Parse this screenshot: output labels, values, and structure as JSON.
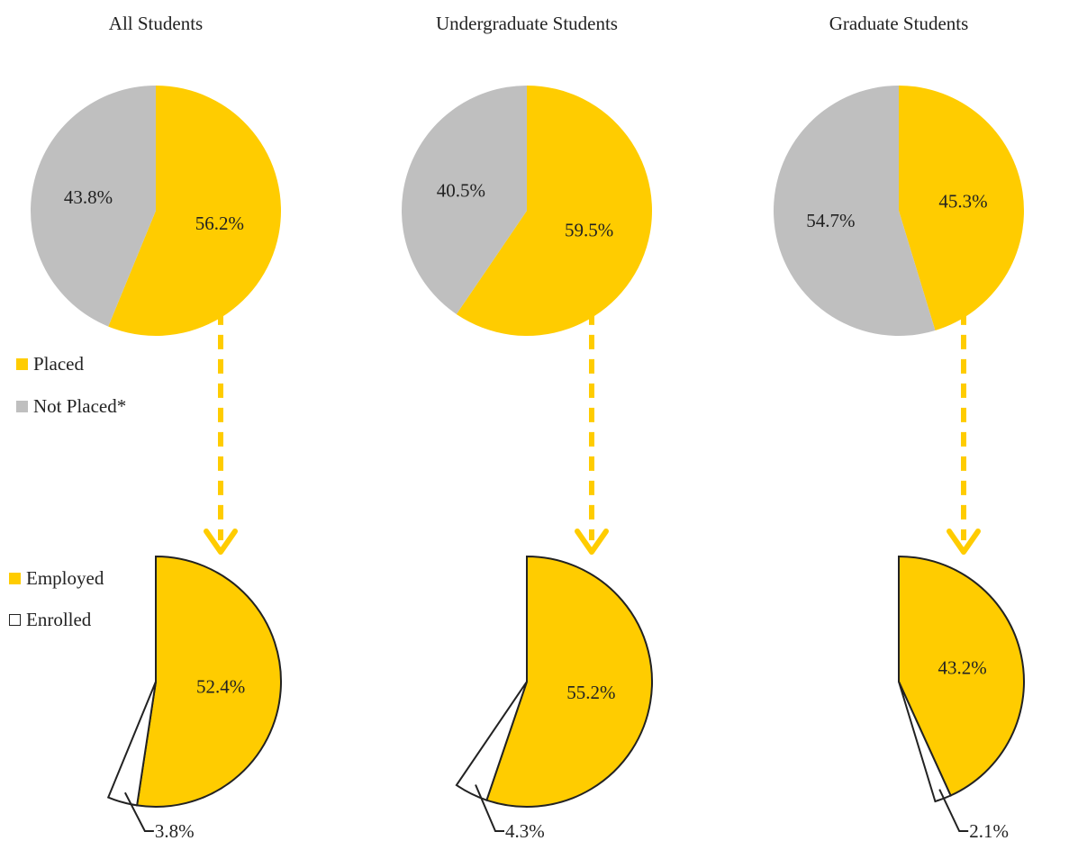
{
  "colors": {
    "placed": "#FFCC00",
    "not_placed": "#BFBFBF",
    "employed": "#FFCC00",
    "enrolled": "#FFFFFF"
  },
  "legend_top": [
    {
      "label": "Placed",
      "color": "#FFCC00"
    },
    {
      "label": "Not Placed*",
      "color": "#BFBFBF"
    }
  ],
  "legend_bottom": [
    {
      "label": "Employed",
      "color": "#FFCC00"
    },
    {
      "label": "Enrolled",
      "color": "#FFFFFF"
    }
  ],
  "chart_data": [
    {
      "type": "pie",
      "title": "All Students",
      "group": "All Students",
      "level": "placement",
      "slices": [
        {
          "name": "Placed",
          "value": 56.2,
          "label": "56.2%"
        },
        {
          "name": "Not Placed*",
          "value": 43.8,
          "label": "43.8%"
        }
      ]
    },
    {
      "type": "pie",
      "title": "Undergraduate Students",
      "group": "Undergraduate Students",
      "level": "placement",
      "slices": [
        {
          "name": "Placed",
          "value": 59.5,
          "label": "59.5%"
        },
        {
          "name": "Not Placed*",
          "value": 40.5,
          "label": "40.5%"
        }
      ]
    },
    {
      "type": "pie",
      "title": "Graduate Students",
      "group": "Graduate Students",
      "level": "placement",
      "slices": [
        {
          "name": "Placed",
          "value": 45.3,
          "label": "45.3%"
        },
        {
          "name": "Not Placed*",
          "value": 54.7,
          "label": "54.7%"
        }
      ]
    },
    {
      "type": "pie",
      "title": "",
      "group": "All Students",
      "level": "breakdown",
      "slices": [
        {
          "name": "Employed",
          "value": 52.4,
          "label": "52.4%"
        },
        {
          "name": "Enrolled",
          "value": 3.8,
          "label": "3.8%"
        }
      ]
    },
    {
      "type": "pie",
      "title": "",
      "group": "Undergraduate Students",
      "level": "breakdown",
      "slices": [
        {
          "name": "Employed",
          "value": 55.2,
          "label": "55.2%"
        },
        {
          "name": "Enrolled",
          "value": 4.3,
          "label": "4.3%"
        }
      ]
    },
    {
      "type": "pie",
      "title": "",
      "group": "Graduate Students",
      "level": "breakdown",
      "slices": [
        {
          "name": "Employed",
          "value": 43.2,
          "label": "43.2%"
        },
        {
          "name": "Enrolled",
          "value": 2.1,
          "label": "2.1%"
        }
      ]
    }
  ]
}
